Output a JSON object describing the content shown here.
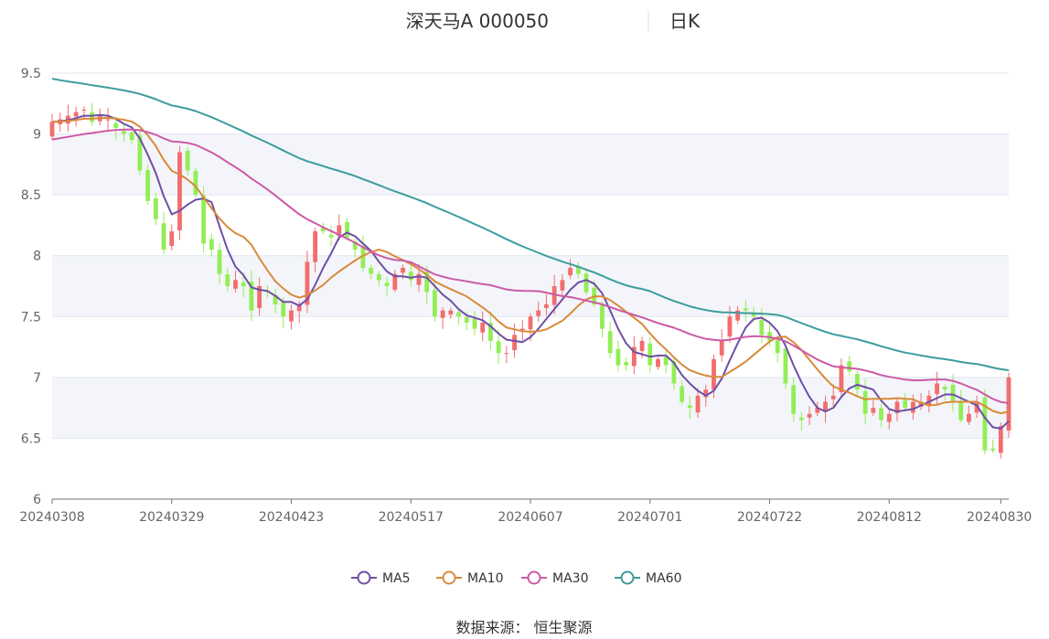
{
  "chart_data": {
    "type": "candlestick",
    "title": "深天马A 000050",
    "subtitle": "日K",
    "source": "数据来源：  恒生聚源",
    "ylim": [
      6,
      9.5
    ],
    "yticks": [
      "6",
      "6.5",
      "7",
      "7.5",
      "8",
      "8.5",
      "9",
      "9.5"
    ],
    "xtick_labels": [
      "20240308",
      "20240329",
      "20240423",
      "20240517",
      "20240607",
      "20240701",
      "20240722",
      "20240812",
      "20240830"
    ],
    "xtick_index": [
      0,
      15,
      30,
      45,
      60,
      75,
      90,
      105,
      119
    ],
    "grid": true,
    "legend_position": "bottom",
    "colors": {
      "up": "#f26d6d",
      "down": "#92ee55",
      "MA5": "#6e4fa6",
      "MA10": "#d98a3a",
      "MA30": "#cc5aa6",
      "MA60": "#3d9c9c",
      "band": "#f3f5fa",
      "grid": "#e2e6ef",
      "axis": "#6e7079"
    },
    "close": [
      9.1,
      9.12,
      9.15,
      9.18,
      9.2,
      9.1,
      9.15,
      9.12,
      9.05,
      9.0,
      8.95,
      8.7,
      8.45,
      8.3,
      8.05,
      8.2,
      8.85,
      8.7,
      8.5,
      8.1,
      8.05,
      7.85,
      7.75,
      7.8,
      7.75,
      7.55,
      7.75,
      7.7,
      7.6,
      7.5,
      7.55,
      7.6,
      7.95,
      8.2,
      8.2,
      8.15,
      8.25,
      8.15,
      8.05,
      7.9,
      7.85,
      7.8,
      7.75,
      7.85,
      7.9,
      7.8,
      7.85,
      7.7,
      7.5,
      7.55,
      7.55,
      7.5,
      7.45,
      7.4,
      7.45,
      7.3,
      7.2,
      7.2,
      7.35,
      7.4,
      7.5,
      7.55,
      7.6,
      7.75,
      7.8,
      7.9,
      7.85,
      7.7,
      7.6,
      7.4,
      7.2,
      7.1,
      7.1,
      7.25,
      7.3,
      7.1,
      7.15,
      7.1,
      6.95,
      6.8,
      6.75,
      6.85,
      6.9,
      7.15,
      7.3,
      7.5,
      7.55,
      7.55,
      7.5,
      7.35,
      7.3,
      7.2,
      6.95,
      6.7,
      6.65,
      6.7,
      6.75,
      6.8,
      6.85,
      7.1,
      7.05,
      6.9,
      6.7,
      6.75,
      6.65,
      6.7,
      6.8,
      6.75,
      6.8,
      6.8,
      6.85,
      6.95,
      6.9,
      6.8,
      6.65,
      6.7,
      6.8,
      6.4,
      6.4,
      6.6,
      7.0
    ],
    "series": [
      {
        "name": "MA5"
      },
      {
        "name": "MA10"
      },
      {
        "name": "MA30"
      },
      {
        "name": "MA60"
      }
    ]
  }
}
